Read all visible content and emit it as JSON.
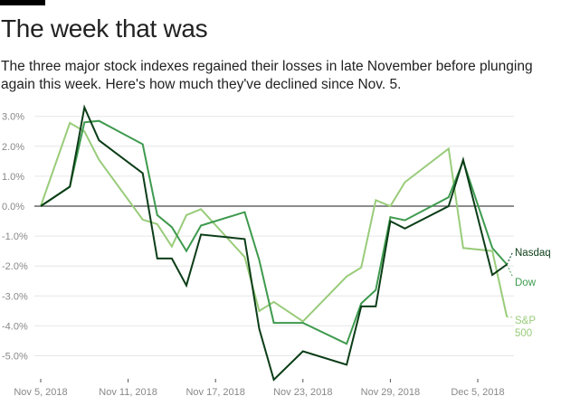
{
  "header": {
    "title": "The week that was",
    "subtitle": "The three major stock indexes regained their losses in late November before plunging again this week. Here's how much they've declined since Nov. 5."
  },
  "chart_data": {
    "type": "line",
    "title": "The week that was",
    "subtitle": "The three major stock indexes regained their losses in late November before plunging again this week. Here's how much they've declined since Nov. 5.",
    "xlabel": "",
    "ylabel": "",
    "ylim": [
      -5.8,
      3.4
    ],
    "yticks": [
      3,
      2,
      1,
      0,
      -1,
      -2,
      -3,
      -4,
      -5
    ],
    "ytick_labels": [
      "3.0%",
      "2.0%",
      "1.0%",
      "0.0%",
      "-1.0%",
      "-2.0%",
      "-3.0%",
      "-4.0%",
      "-5.0%"
    ],
    "xticks": [
      0,
      6,
      12,
      18,
      24,
      30
    ],
    "xtick_labels": [
      "Nov 5, 2018",
      "Nov 11, 2018",
      "Nov 17, 2018",
      "Nov 23, 2018",
      "Nov 29, 2018",
      "Dec 5, 2018"
    ],
    "x_unit": "days since Nov 5, 2018",
    "x": [
      0,
      2,
      3,
      4,
      7,
      8,
      9,
      10,
      11,
      14,
      15,
      16,
      18,
      21,
      22,
      23,
      24,
      25,
      28,
      29,
      31,
      32
    ],
    "grid": true,
    "legend": "right-end labels",
    "series": [
      {
        "name": "Nasdaq",
        "color": "#0b3d17",
        "values": [
          0.0,
          0.65,
          3.3,
          2.2,
          1.1,
          -1.75,
          -1.75,
          -2.65,
          -0.95,
          -1.1,
          -4.1,
          -5.8,
          -4.85,
          -5.3,
          -3.35,
          -3.35,
          -0.5,
          -0.75,
          0.0,
          1.55,
          -2.3,
          -1.95
        ]
      },
      {
        "name": "Dow",
        "color": "#3e9a4e",
        "values": [
          0.0,
          0.65,
          2.8,
          2.85,
          2.07,
          -0.3,
          -0.7,
          -1.5,
          -0.65,
          -0.2,
          -1.8,
          -3.9,
          -3.9,
          -4.6,
          -3.25,
          -2.8,
          -0.37,
          -0.47,
          0.3,
          1.5,
          -1.4,
          -1.95
        ]
      },
      {
        "name": "S&P 500",
        "color": "#99cc7a",
        "values": [
          0.0,
          2.78,
          2.5,
          1.55,
          -0.45,
          -0.6,
          -1.35,
          -0.3,
          -0.1,
          -1.7,
          -3.5,
          -3.2,
          -3.85,
          -2.35,
          -2.05,
          0.2,
          0.0,
          0.8,
          1.92,
          -1.4,
          -1.5,
          -3.7
        ]
      }
    ]
  }
}
